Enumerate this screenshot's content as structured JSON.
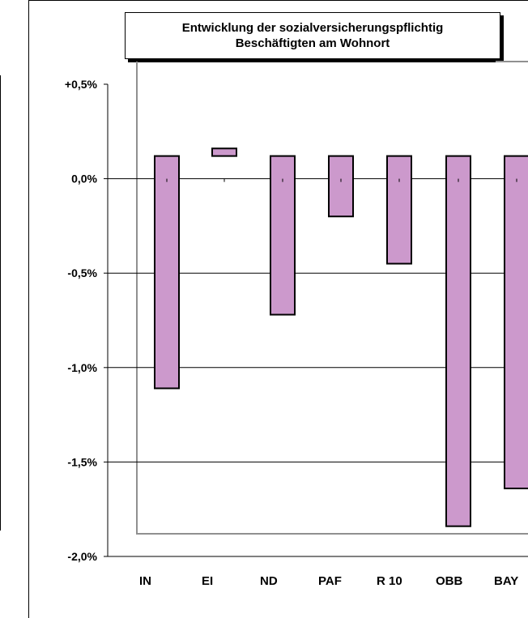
{
  "chart_data": {
    "type": "bar",
    "title": "Entwicklung der sozialversicherungspflichtig",
    "subtitle": "Beschäftigten am Wohnort",
    "categories": [
      "IN",
      "EI",
      "ND",
      "PAF",
      "R 10",
      "OBB",
      "BAY"
    ],
    "values": [
      -1.11,
      0.04,
      -0.72,
      -0.2,
      -0.45,
      -1.84,
      -1.64
    ],
    "bar_top": 0.12,
    "ylim": [
      -2.0,
      0.5
    ],
    "y_ticks": [
      {
        "value": 0.5,
        "label": "+0,5%"
      },
      {
        "value": 0.0,
        "label": "0,0%"
      },
      {
        "value": -0.5,
        "label": "-0,5%"
      },
      {
        "value": -1.0,
        "label": "-1,0%"
      },
      {
        "value": -1.5,
        "label": "-1,5%"
      },
      {
        "value": -2.0,
        "label": "-2,0%"
      }
    ],
    "grid": true,
    "bar_color": "#cc99cc",
    "bar_edge_color": "#000000"
  }
}
